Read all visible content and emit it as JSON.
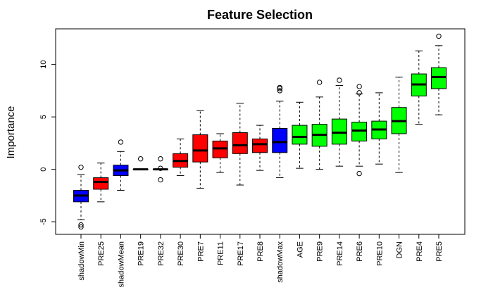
{
  "chart_data": {
    "type": "boxplot",
    "title": "Feature Selection",
    "xlabel": "",
    "ylabel": "Importance",
    "ylim": [
      -6.2,
      13.4
    ],
    "yticks": [
      -5,
      0,
      5,
      10
    ],
    "grid": false,
    "legend": "none",
    "colors": {
      "shadow": "#0000ff",
      "rejected": "#ff0000",
      "tentative": "#ffff00",
      "confirmed": "#00ff00"
    },
    "categories": [
      "shadowMin",
      "PRE25",
      "shadowMean",
      "PRE19",
      "PRE32",
      "PRE30",
      "PRE7",
      "PRE11",
      "PRE17",
      "PRE8",
      "shadowMax",
      "AGE",
      "PRE9",
      "PRE14",
      "PRE6",
      "PRE10",
      "DGN",
      "PRE4",
      "PRE5"
    ],
    "boxes": [
      {
        "label": "shadowMin",
        "group": "shadow",
        "whisker_low": -4.8,
        "q1": -3.1,
        "median": -2.5,
        "q3": -2.0,
        "whisker_high": -0.5,
        "outliers": [
          -5.3,
          -5.5,
          0.2
        ]
      },
      {
        "label": "PRE25",
        "group": "rejected",
        "whisker_low": -3.1,
        "q1": -1.9,
        "median": -1.2,
        "q3": -0.8,
        "whisker_high": 0.6,
        "outliers": []
      },
      {
        "label": "shadowMean",
        "group": "shadow",
        "whisker_low": -2.0,
        "q1": -0.6,
        "median": -0.1,
        "q3": 0.4,
        "whisker_high": 1.7,
        "outliers": [
          2.6
        ]
      },
      {
        "label": "PRE19",
        "group": "rejected",
        "whisker_low": 0,
        "q1": 0,
        "median": 0,
        "q3": 0,
        "whisker_high": 0,
        "outliers": [
          1.0
        ]
      },
      {
        "label": "PRE32",
        "group": "rejected",
        "whisker_low": 0,
        "q1": 0,
        "median": 0,
        "q3": 0,
        "whisker_high": 0,
        "outliers": [
          1.0,
          0.1,
          -1.0
        ]
      },
      {
        "label": "PRE30",
        "group": "rejected",
        "whisker_low": -0.6,
        "q1": 0.2,
        "median": 0.8,
        "q3": 1.5,
        "whisker_high": 2.9,
        "outliers": []
      },
      {
        "label": "PRE7",
        "group": "rejected",
        "whisker_low": -1.8,
        "q1": 0.7,
        "median": 1.8,
        "q3": 3.3,
        "whisker_high": 5.6,
        "outliers": []
      },
      {
        "label": "PRE11",
        "group": "rejected",
        "whisker_low": -0.3,
        "q1": 1.1,
        "median": 2.0,
        "q3": 2.7,
        "whisker_high": 3.4,
        "outliers": []
      },
      {
        "label": "PRE17",
        "group": "rejected",
        "whisker_low": -1.5,
        "q1": 1.5,
        "median": 2.3,
        "q3": 3.5,
        "whisker_high": 6.3,
        "outliers": []
      },
      {
        "label": "PRE8",
        "group": "rejected",
        "whisker_low": -0.1,
        "q1": 1.6,
        "median": 2.4,
        "q3": 2.9,
        "whisker_high": 4.2,
        "outliers": []
      },
      {
        "label": "shadowMax",
        "group": "shadow",
        "whisker_low": -0.8,
        "q1": 1.6,
        "median": 2.6,
        "q3": 3.9,
        "whisker_high": 6.5,
        "outliers": [
          7.5,
          7.7,
          7.8
        ]
      },
      {
        "label": "AGE",
        "group": "confirmed",
        "whisker_low": 0.1,
        "q1": 2.4,
        "median": 3.1,
        "q3": 4.2,
        "whisker_high": 6.4,
        "outliers": []
      },
      {
        "label": "PRE9",
        "group": "confirmed",
        "whisker_low": 0.0,
        "q1": 2.2,
        "median": 3.3,
        "q3": 4.3,
        "whisker_high": 6.9,
        "outliers": [
          8.3
        ]
      },
      {
        "label": "PRE14",
        "group": "confirmed",
        "whisker_low": 0.3,
        "q1": 2.4,
        "median": 3.5,
        "q3": 4.8,
        "whisker_high": 8.0,
        "outliers": [
          8.5
        ]
      },
      {
        "label": "PRE6",
        "group": "confirmed",
        "whisker_low": 0.3,
        "q1": 2.7,
        "median": 3.7,
        "q3": 4.5,
        "whisker_high": 7.2,
        "outliers": [
          -0.4,
          7.3,
          7.9
        ]
      },
      {
        "label": "PRE10",
        "group": "confirmed",
        "whisker_low": 0.5,
        "q1": 2.9,
        "median": 3.8,
        "q3": 4.6,
        "whisker_high": 7.3,
        "outliers": []
      },
      {
        "label": "DGN",
        "group": "confirmed",
        "whisker_low": -0.3,
        "q1": 3.4,
        "median": 4.6,
        "q3": 5.9,
        "whisker_high": 8.8,
        "outliers": []
      },
      {
        "label": "PRE4",
        "group": "confirmed",
        "whisker_low": 4.3,
        "q1": 7.0,
        "median": 8.1,
        "q3": 9.1,
        "whisker_high": 11.3,
        "outliers": []
      },
      {
        "label": "PRE5",
        "group": "confirmed",
        "whisker_low": 5.2,
        "q1": 7.7,
        "median": 8.8,
        "q3": 9.7,
        "whisker_high": 11.8,
        "outliers": [
          12.7
        ]
      }
    ]
  }
}
